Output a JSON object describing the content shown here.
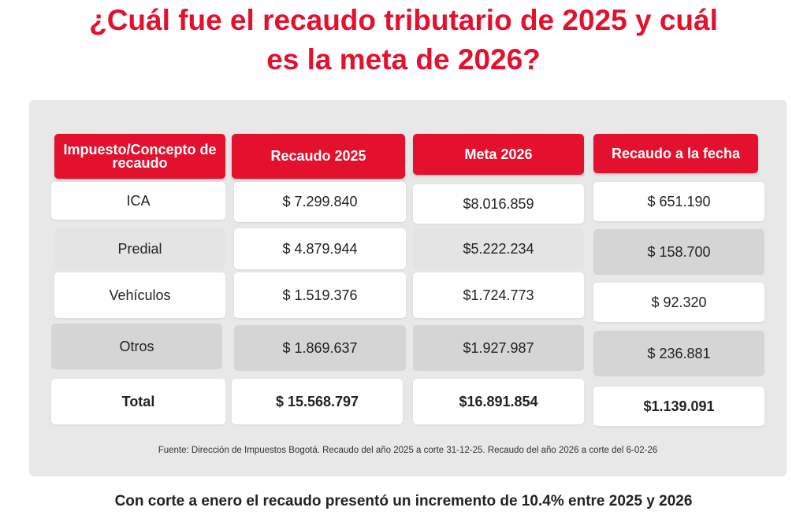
{
  "header": {
    "title_line1": "¿Cuál fue el recaudo tributario  de 2025 y cuál",
    "title_line2": "es la meta de 2026?"
  },
  "table": {
    "columns": [
      "Impuesto/Concepto de recaudo",
      "Recaudo 2025",
      "Meta 2026",
      "Recaudo a la fecha"
    ],
    "rows": [
      [
        "ICA",
        "$ 7.299.840",
        "$8.016.859",
        "$ 651.190"
      ],
      [
        "Predial",
        "$ 4.879.944",
        "$5.222.234",
        "$ 158.700"
      ],
      [
        "Vehículos",
        "$ 1.519.376",
        "$1.724.773",
        "$ 92.320"
      ],
      [
        "Otros",
        "$ 1.869.637",
        "$1.927.987",
        "$ 236.881"
      ],
      [
        "Total",
        "$ 15.568.797",
        "$16.891.854",
        "$1.139.091"
      ]
    ]
  },
  "source": "Fuente: Dirección de Impuestos Bogotá. Recaudo del año 2025 a corte 31-12-25. Recaudo del año 2026 a corte del  6-02-26",
  "footer": "Con corte a enero el recaudo presentó un incremento de 10.4% entre 2025 y 2026"
}
